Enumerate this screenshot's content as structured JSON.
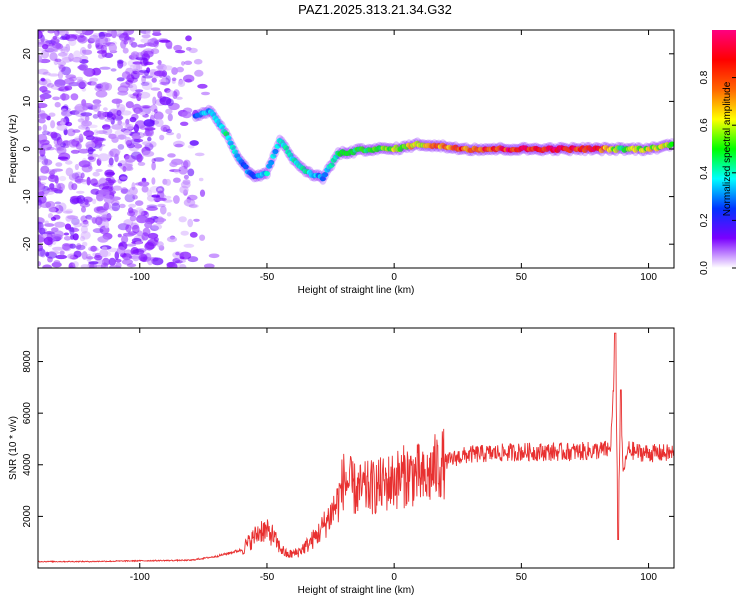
{
  "title": "PAZ1.2025.313.21.34.G32",
  "colors": {
    "snr_line": "#e83030",
    "axis": "#000000",
    "background": "#ffffff"
  },
  "chart_data": [
    {
      "type": "heatmap",
      "name": "spectrogram",
      "xlabel": "Height of straight line (km)",
      "ylabel": "Frequency (Hz)",
      "xlim": [
        -140,
        110
      ],
      "ylim": [
        -25,
        25
      ],
      "x_ticks": [
        -100,
        -50,
        0,
        50,
        100
      ],
      "y_ticks": [
        -20,
        -10,
        0,
        10,
        20
      ],
      "colorbar": {
        "label": "Normalized spectral amplitude",
        "range": [
          0,
          1
        ],
        "ticks": [
          0.0,
          0.2,
          0.4,
          0.6,
          0.8
        ],
        "colormap": [
          "#ffffff",
          "#7a00ff",
          "#0033ff",
          "#00ffff",
          "#00ff00",
          "#ffff00",
          "#ff6600",
          "#ff0000",
          "#ff0080"
        ]
      },
      "features": {
        "noise_region_x": [
          -140,
          -70
        ],
        "signal_track": [
          {
            "x": -78,
            "freq": 7,
            "amp": 0.3
          },
          {
            "x": -72,
            "freq": 8,
            "amp": 0.35
          },
          {
            "x": -66,
            "freq": 3,
            "amp": 0.4
          },
          {
            "x": -60,
            "freq": -3,
            "amp": 0.3
          },
          {
            "x": -55,
            "freq": -6,
            "amp": 0.3
          },
          {
            "x": -50,
            "freq": -5,
            "amp": 0.35
          },
          {
            "x": -45,
            "freq": 2,
            "amp": 0.35
          },
          {
            "x": -40,
            "freq": -2,
            "amp": 0.4
          },
          {
            "x": -34,
            "freq": -5,
            "amp": 0.4
          },
          {
            "x": -28,
            "freq": -6,
            "amp": 0.3
          },
          {
            "x": -22,
            "freq": -1,
            "amp": 0.45
          },
          {
            "x": -10,
            "freq": 0,
            "amp": 0.5
          },
          {
            "x": 0,
            "freq": 0,
            "amp": 0.55
          },
          {
            "x": 10,
            "freq": 1,
            "amp": 0.65
          },
          {
            "x": 30,
            "freq": 0,
            "amp": 0.8
          },
          {
            "x": 60,
            "freq": 0,
            "amp": 0.9
          },
          {
            "x": 80,
            "freq": 0,
            "amp": 0.85
          },
          {
            "x": 88,
            "freq": 0,
            "amp": 0.5
          },
          {
            "x": 100,
            "freq": 0,
            "amp": 0.6
          },
          {
            "x": 110,
            "freq": 1,
            "amp": 0.55
          }
        ]
      }
    },
    {
      "type": "line",
      "name": "snr",
      "xlabel": "Height of straight line (km)",
      "ylabel": "SNR (10 * v/v)",
      "xlim": [
        -140,
        110
      ],
      "ylim": [
        0,
        9300
      ],
      "x_ticks": [
        -100,
        -50,
        0,
        50,
        100
      ],
      "y_ticks": [
        2000,
        4000,
        6000,
        8000
      ],
      "series": [
        {
          "name": "SNR",
          "x": [
            -140,
            -120,
            -100,
            -80,
            -70,
            -60,
            -56,
            -52,
            -48,
            -45,
            -42,
            -38,
            -34,
            -30,
            -26,
            -22,
            -20,
            -18,
            -15,
            -10,
            -5,
            0,
            5,
            10,
            12,
            15,
            20,
            25,
            30,
            40,
            50,
            60,
            70,
            80,
            85,
            86,
            87,
            88,
            89,
            90,
            92,
            95,
            100,
            110
          ],
          "values": [
            250,
            250,
            280,
            300,
            450,
            700,
            1100,
            1500,
            1300,
            800,
            500,
            600,
            900,
            1300,
            1900,
            2600,
            3400,
            3300,
            3000,
            3100,
            3200,
            3400,
            3600,
            3600,
            3300,
            3800,
            4100,
            4300,
            4400,
            4450,
            4500,
            4500,
            4500,
            4550,
            4600,
            6500,
            8500,
            1500,
            6300,
            3700,
            4600,
            4500,
            4450,
            4450
          ]
        }
      ],
      "peak_annotation_values": [
        9100,
        1100,
        6900
      ]
    }
  ]
}
